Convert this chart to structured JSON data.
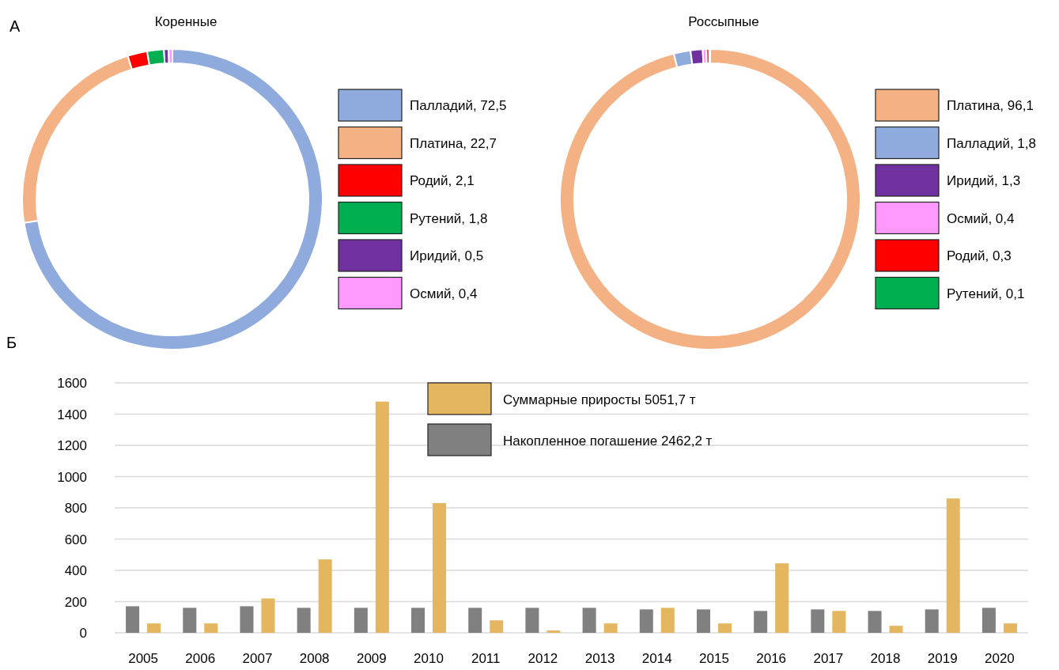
{
  "chart_data": [
    {
      "type": "donut",
      "title": "Коренные",
      "annotations": [
        "А"
      ],
      "legend": "right",
      "categories": [
        "Палладий",
        "Платина",
        "Родий",
        "Рутений",
        "Иридий",
        "Осмий"
      ],
      "values": [
        72.5,
        22.7,
        2.1,
        1.8,
        0.5,
        0.4
      ],
      "value_labels": [
        "72,5",
        "22,7",
        "2,1",
        "1,8",
        "0,5",
        "0,4"
      ],
      "colors": [
        "#8faadc",
        "#f4b183",
        "#ff0000",
        "#00b050",
        "#7030a0",
        "#ff99ff"
      ]
    },
    {
      "type": "donut",
      "title": "Россыпные",
      "legend": "right",
      "categories": [
        "Платина",
        "Палладий",
        "Иридий",
        "Осмий",
        "Родий",
        "Рутений"
      ],
      "values": [
        96.1,
        1.8,
        1.3,
        0.4,
        0.3,
        0.1
      ],
      "value_labels": [
        "96,1",
        "1,8",
        "1,3",
        "0,4",
        "0,3",
        "0,1"
      ],
      "colors": [
        "#f4b183",
        "#8faadc",
        "#7030a0",
        "#ff99ff",
        "#ff0000",
        "#00b050"
      ]
    },
    {
      "type": "bar",
      "annotations": [
        "Б"
      ],
      "legend": "top",
      "grid": "y",
      "ylim": [
        0,
        1600
      ],
      "yticks": [
        0,
        200,
        400,
        600,
        800,
        1000,
        1200,
        1400,
        1600
      ],
      "categories": [
        "2005",
        "2006",
        "2007",
        "2008",
        "2009",
        "2010",
        "2011",
        "2012",
        "2013",
        "2014",
        "2015",
        "2016",
        "2017",
        "2018",
        "2019",
        "2020"
      ],
      "series": [
        {
          "name": "Накопленное погашение 2462,2 т",
          "color": "#808080",
          "values": [
            170,
            160,
            170,
            160,
            160,
            160,
            160,
            160,
            160,
            150,
            150,
            140,
            150,
            140,
            150,
            160
          ]
        },
        {
          "name": "Суммарные приросты 5051,7 т",
          "color": "#e3b65f",
          "values": [
            60,
            60,
            220,
            470,
            1480,
            830,
            80,
            15,
            60,
            160,
            60,
            445,
            140,
            45,
            860,
            60
          ]
        }
      ]
    }
  ]
}
